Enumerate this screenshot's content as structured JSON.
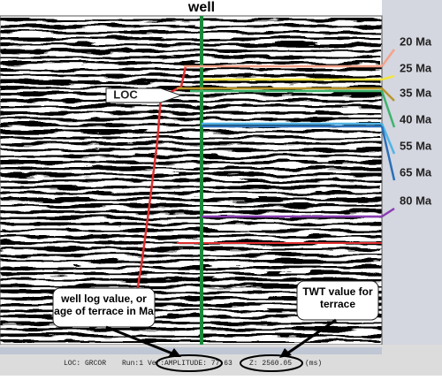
{
  "title": "well",
  "horizons": [
    {
      "label": "20 Ma",
      "color": "#f4a38a"
    },
    {
      "label": "25 Ma",
      "color": "#f2e640"
    },
    {
      "label": "35 Ma",
      "color": "#b8952a"
    },
    {
      "label": "40 Ma",
      "color": "#3cb46e"
    },
    {
      "label": "55 Ma",
      "color": "#4fb4e6"
    },
    {
      "label": "65 Ma",
      "color": "#2a6fb8"
    },
    {
      "label": "80 Ma",
      "color": "#8a3cb4"
    }
  ],
  "annotations": {
    "loc": "LOC",
    "well_log": "well log value, or age of terrace in Ma",
    "twt": "TWT value for terrace"
  },
  "status": {
    "loc": "LOC: GRCOR",
    "run": "Run:1",
    "ver": "Ver:",
    "amplitude": "AMPLITUDE: 77.63",
    "z": "Z: 2560.05",
    "unit": "(ms)"
  }
}
